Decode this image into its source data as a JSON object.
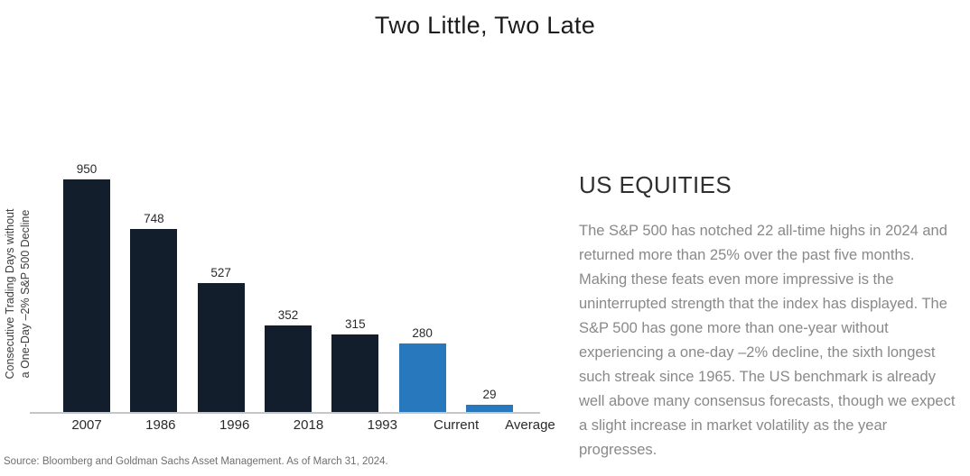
{
  "title": "Two Little, Two Late",
  "article": {
    "heading": "US EQUITIES",
    "body": "The S&P 500 has notched 22 all-time highs in 2024 and returned more than 25% over the past five months. Making these feats even more impressive is the uninterrupted strength that the index has displayed. The S&P 500 has gone more than one-year without experiencing a one-day –2% decline, the sixth longest such streak since 1965. The US benchmark is already well above many consensus forecasts, though we expect a slight increase in market volatility as the year progresses."
  },
  "source": "Source: Bloomberg and Goldman Sachs Asset Management. As of March 31, 2024.",
  "chart_data": {
    "type": "bar",
    "title": "Two Little, Two Late",
    "categories": [
      "2007",
      "1986",
      "1996",
      "2018",
      "1993",
      "Current",
      "Average"
    ],
    "values": [
      950,
      748,
      527,
      352,
      315,
      280,
      29
    ],
    "bar_colors": [
      "#121E2B",
      "#121E2B",
      "#121E2B",
      "#121E2B",
      "#121E2B",
      "#2878BD",
      "#2878BD"
    ],
    "ylabel": "Consecutive Trading Days without a One-Day –2% S&P 500 Decline",
    "ylabel_lines": [
      "Consecutive Trading Days without",
      "a One-Day –2% S&P 500 Decline"
    ],
    "xlabel": "",
    "ylim": [
      0,
      1000
    ],
    "grid": false,
    "data_labels": true,
    "legend": "none",
    "colors": {
      "historical_bar": "#121E2B",
      "highlight_bar": "#2878BD",
      "axis_line": "#C6C6C6"
    }
  }
}
